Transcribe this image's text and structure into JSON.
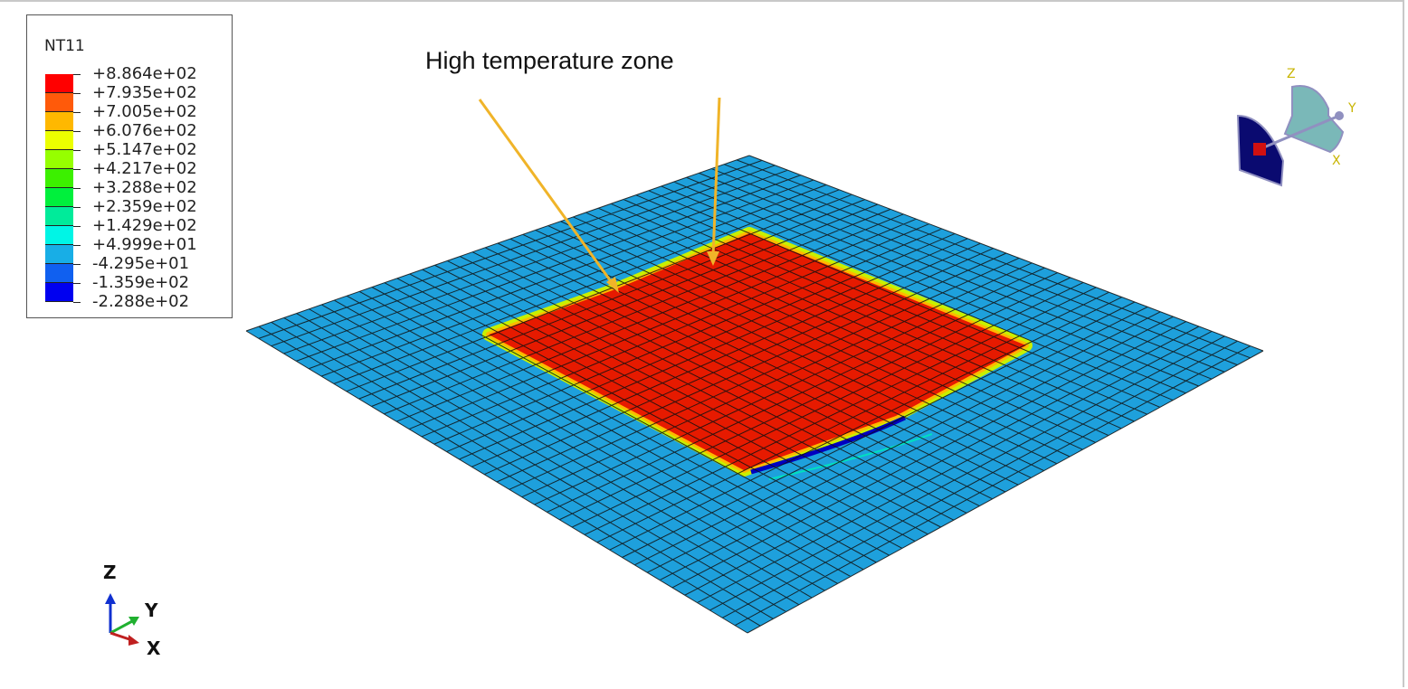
{
  "legend": {
    "title": "NT11",
    "labels": [
      "+8.864e+02",
      "+7.935e+02",
      "+7.005e+02",
      "+6.076e+02",
      "+5.147e+02",
      "+4.217e+02",
      "+3.288e+02",
      "+2.359e+02",
      "+1.429e+02",
      "+4.999e+01",
      "-4.295e+01",
      "-1.359e+02",
      "-2.288e+02"
    ],
    "colors": [
      "#ff0000",
      "#ff5a0a",
      "#ffb800",
      "#ecff00",
      "#96ff00",
      "#3cf000",
      "#00f03c",
      "#00eb9a",
      "#00f5e6",
      "#18aee6",
      "#1060f0",
      "#0000f0"
    ]
  },
  "annotation": {
    "text": "High temperature zone",
    "arrow_color": "#f0b429"
  },
  "colors": {
    "plate": "#1ea0dc",
    "hot_zone": "#e61a00",
    "mesh": "#111111"
  },
  "triad_left": {
    "z": "Z",
    "y": "Y",
    "x": "X"
  },
  "triad_right": {
    "z": "Z",
    "y": "Y",
    "x": "X"
  }
}
